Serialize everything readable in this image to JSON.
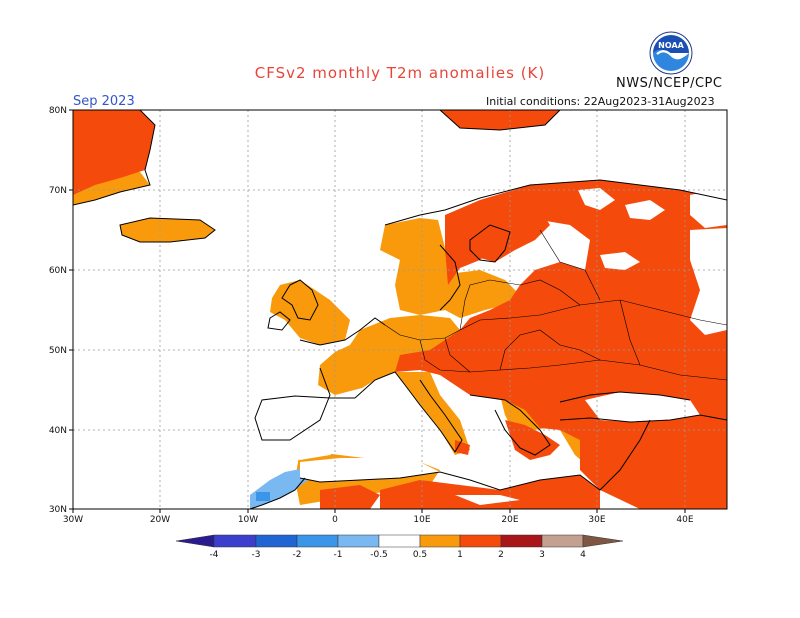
{
  "header": {
    "title": "CFSv2 monthly T2m anomalies (K)",
    "month": "Sep 2023",
    "initial_conditions": "Initial conditions: 22Aug2023-31Aug2023",
    "agency": "NWS/NCEP/CPC",
    "logo_text": "NOAA"
  },
  "axes": {
    "lat_labels": [
      "80N",
      "70N",
      "60N",
      "50N",
      "40N",
      "30N"
    ],
    "lon_labels": [
      "30W",
      "20W",
      "10W",
      "0",
      "10E",
      "20E",
      "30E",
      "40E"
    ]
  },
  "colorbar": {
    "labels": [
      "-4",
      "-3",
      "-2",
      "-1",
      "-0.5",
      "0.5",
      "1",
      "2",
      "3",
      "4"
    ],
    "colors": [
      "#2a1c8f",
      "#3b3fcb",
      "#1f66d4",
      "#3b95e8",
      "#79b8f0",
      "#ffffff",
      "#f89a0c",
      "#f44a0c",
      "#a8161a",
      "#c3a090",
      "#7f5543"
    ]
  },
  "colors": {
    "anom_1_2": "#f44a0c",
    "anom_05_1": "#f89a0c",
    "anom_neg_05_1": "#79b8f0",
    "anom_neg_1_2": "#3b95e8",
    "coast": "#000000",
    "grid": "#999999"
  }
}
